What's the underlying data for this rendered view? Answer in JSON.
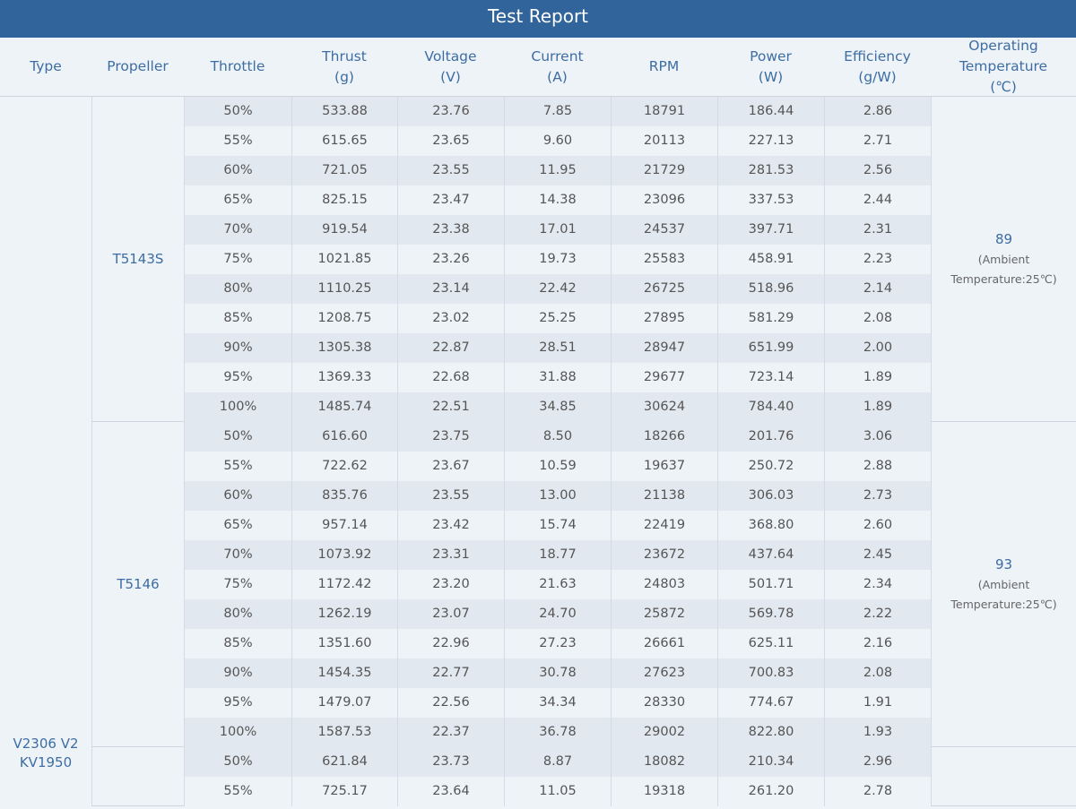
{
  "title": "Test Report",
  "colors": {
    "title_bar": "#30649a",
    "header_text": "#3d6da3",
    "background": "#eef3f8",
    "row_shade": "#e2e8ef"
  },
  "columns": [
    "Type",
    "Propeller",
    "Throttle",
    "Thrust\n(g)",
    "Voltage\n(V)",
    "Current\n(A)",
    "RPM",
    "Power\n(W)",
    "Efficiency\n(g/W)",
    "Operating\nTemperature\n(℃)"
  ],
  "type": "V2306 V2\nKV1950",
  "groups": [
    {
      "propeller": "T5143S",
      "temperature": "89",
      "ambient": "(Ambient\nTemperature:25℃)",
      "rows": [
        [
          "50%",
          "533.88",
          "23.76",
          "7.85",
          "18791",
          "186.44",
          "2.86"
        ],
        [
          "55%",
          "615.65",
          "23.65",
          "9.60",
          "20113",
          "227.13",
          "2.71"
        ],
        [
          "60%",
          "721.05",
          "23.55",
          "11.95",
          "21729",
          "281.53",
          "2.56"
        ],
        [
          "65%",
          "825.15",
          "23.47",
          "14.38",
          "23096",
          "337.53",
          "2.44"
        ],
        [
          "70%",
          "919.54",
          "23.38",
          "17.01",
          "24537",
          "397.71",
          "2.31"
        ],
        [
          "75%",
          "1021.85",
          "23.26",
          "19.73",
          "25583",
          "458.91",
          "2.23"
        ],
        [
          "80%",
          "1110.25",
          "23.14",
          "22.42",
          "26725",
          "518.96",
          "2.14"
        ],
        [
          "85%",
          "1208.75",
          "23.02",
          "25.25",
          "27895",
          "581.29",
          "2.08"
        ],
        [
          "90%",
          "1305.38",
          "22.87",
          "28.51",
          "28947",
          "651.99",
          "2.00"
        ],
        [
          "95%",
          "1369.33",
          "22.68",
          "31.88",
          "29677",
          "723.14",
          "1.89"
        ],
        [
          "100%",
          "1485.74",
          "22.51",
          "34.85",
          "30624",
          "784.40",
          "1.89"
        ]
      ]
    },
    {
      "propeller": "T5146",
      "temperature": "93",
      "ambient": "(Ambient\nTemperature:25℃)",
      "rows": [
        [
          "50%",
          "616.60",
          "23.75",
          "8.50",
          "18266",
          "201.76",
          "3.06"
        ],
        [
          "55%",
          "722.62",
          "23.67",
          "10.59",
          "19637",
          "250.72",
          "2.88"
        ],
        [
          "60%",
          "835.76",
          "23.55",
          "13.00",
          "21138",
          "306.03",
          "2.73"
        ],
        [
          "65%",
          "957.14",
          "23.42",
          "15.74",
          "22419",
          "368.80",
          "2.60"
        ],
        [
          "70%",
          "1073.92",
          "23.31",
          "18.77",
          "23672",
          "437.64",
          "2.45"
        ],
        [
          "75%",
          "1172.42",
          "23.20",
          "21.63",
          "24803",
          "501.71",
          "2.34"
        ],
        [
          "80%",
          "1262.19",
          "23.07",
          "24.70",
          "25872",
          "569.78",
          "2.22"
        ],
        [
          "85%",
          "1351.60",
          "22.96",
          "27.23",
          "26661",
          "625.11",
          "2.16"
        ],
        [
          "90%",
          "1454.35",
          "22.77",
          "30.78",
          "27623",
          "700.83",
          "2.08"
        ],
        [
          "95%",
          "1479.07",
          "22.56",
          "34.34",
          "28330",
          "774.67",
          "1.91"
        ],
        [
          "100%",
          "1587.53",
          "22.37",
          "36.78",
          "29002",
          "822.80",
          "1.93"
        ]
      ]
    },
    {
      "propeller": "",
      "temperature": "",
      "ambient": "",
      "rows": [
        [
          "50%",
          "621.84",
          "23.73",
          "8.87",
          "18082",
          "210.34",
          "2.96"
        ],
        [
          "55%",
          "725.17",
          "23.64",
          "11.05",
          "19318",
          "261.20",
          "2.78"
        ]
      ]
    }
  ]
}
